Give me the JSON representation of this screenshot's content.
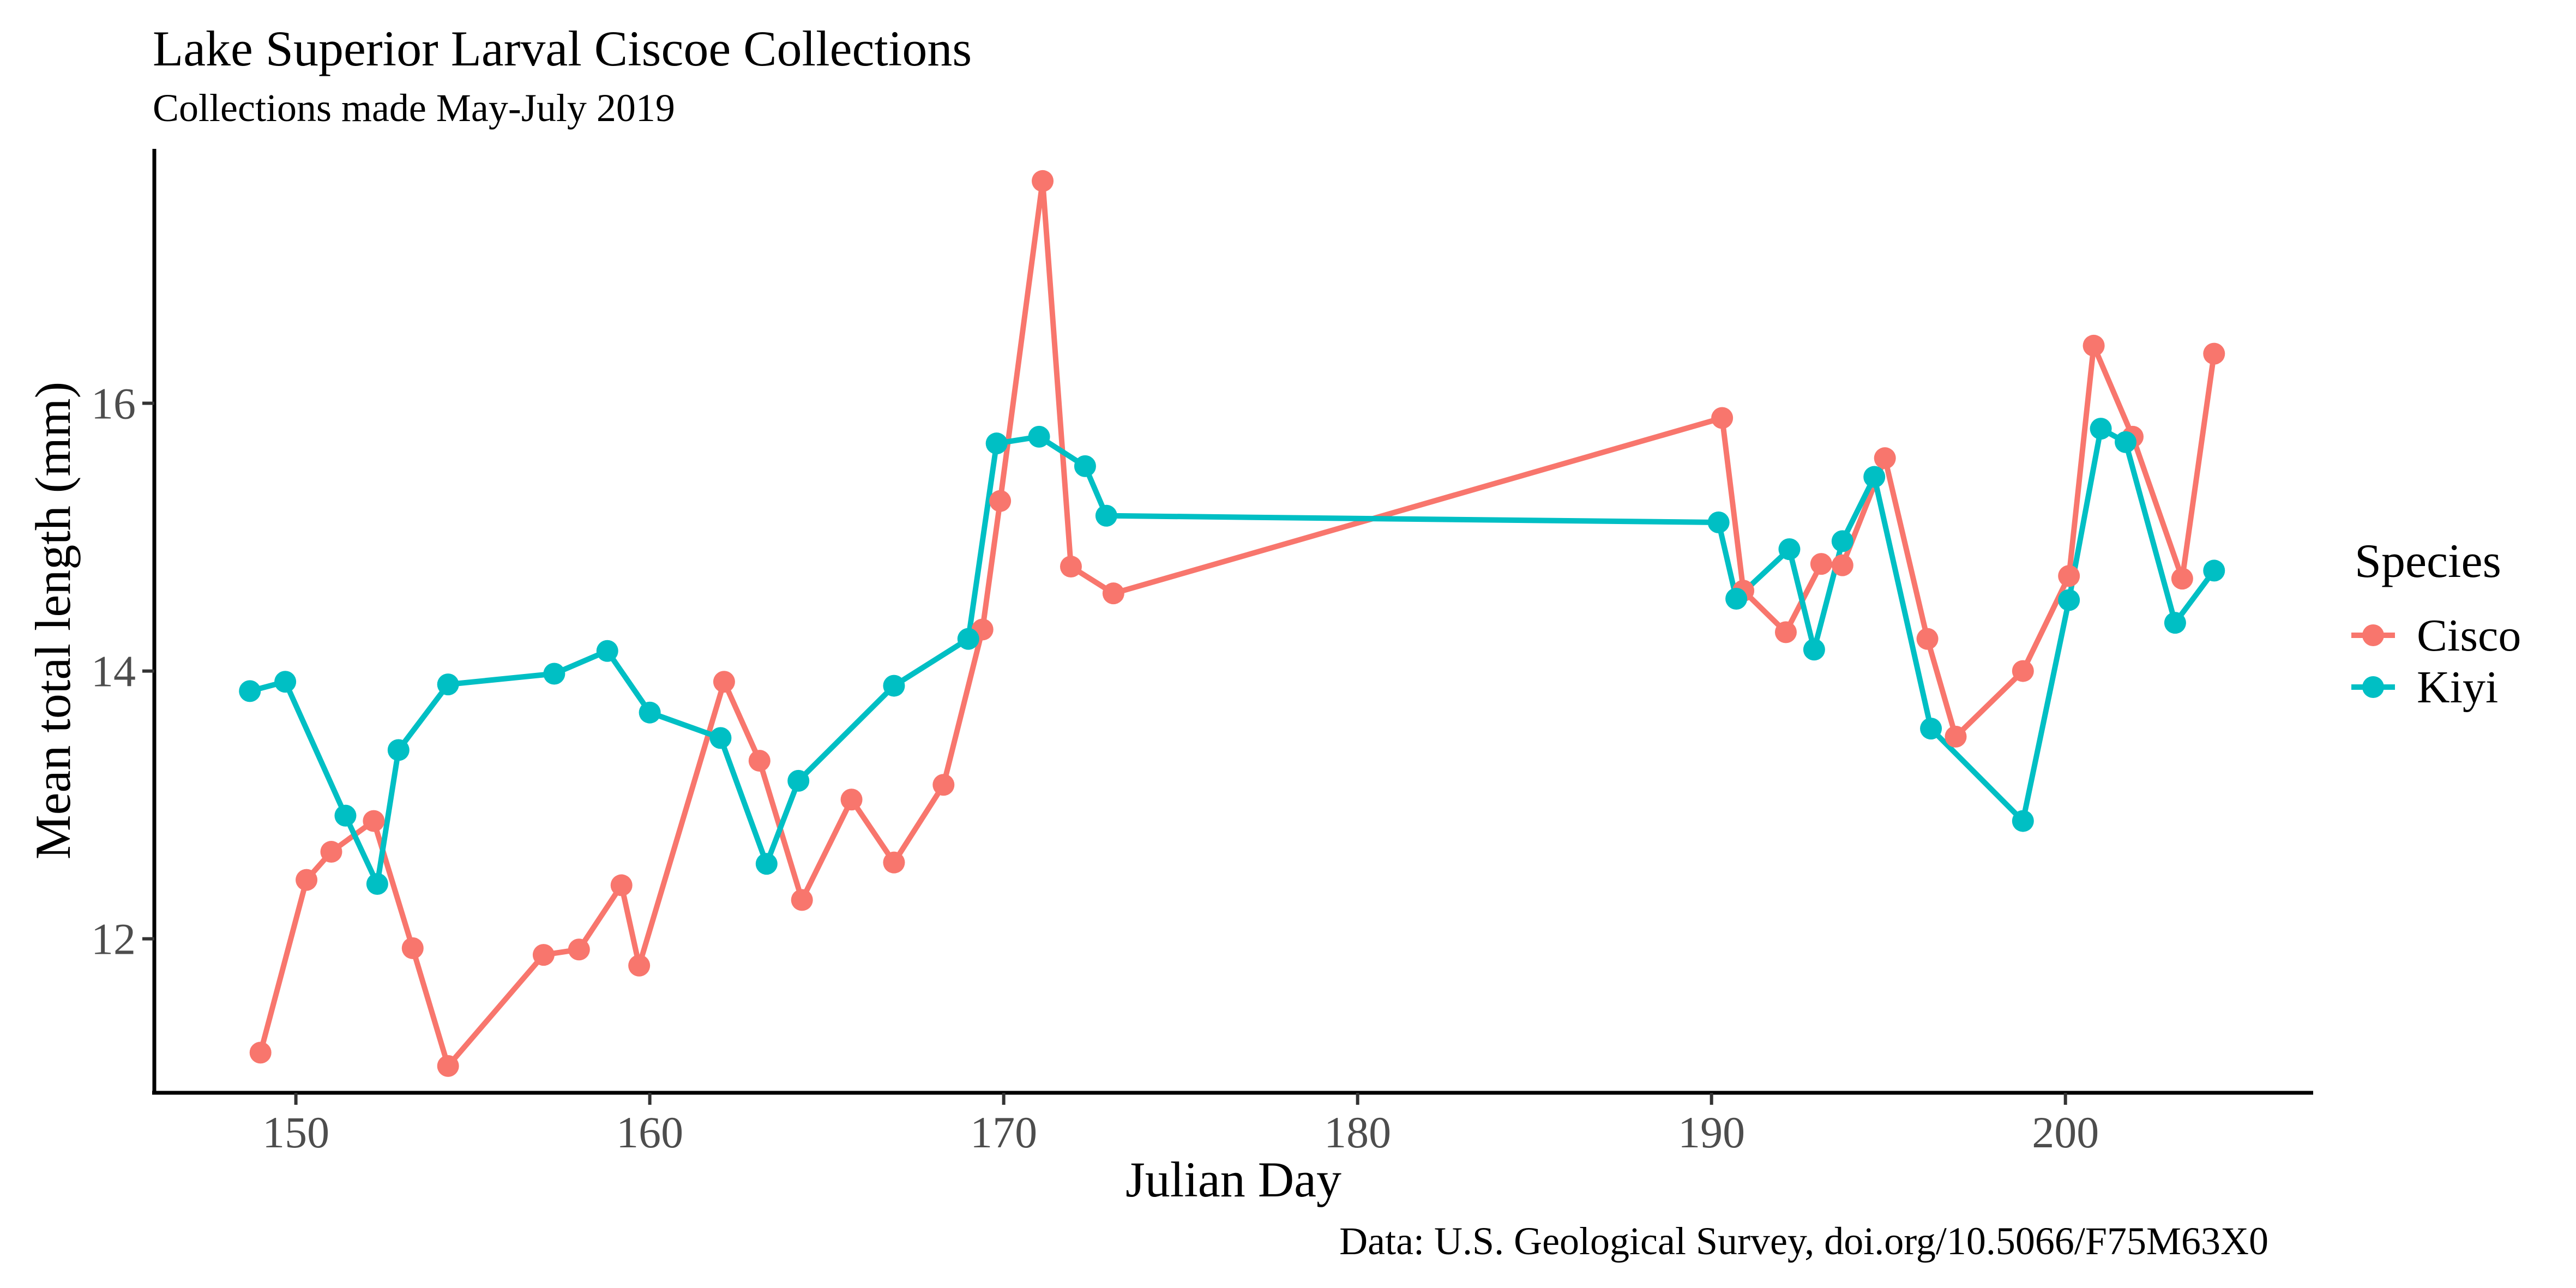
{
  "chart_data": {
    "type": "line",
    "title": "Lake Superior Larval Ciscoe Collections",
    "subtitle": "Collections made May-July 2019",
    "caption": "Data: U.S. Geological Survey, doi.org/10.5066/F75M63X0",
    "xlabel": "Julian Day",
    "ylabel": "Mean total length (mm)",
    "xlim": [
      146,
      207
    ],
    "ylim": [
      10.85,
      17.9
    ],
    "x_ticks": [
      150,
      160,
      170,
      180,
      190,
      200
    ],
    "y_ticks": [
      12,
      14,
      16
    ],
    "grid": false,
    "legend": {
      "title": "Species",
      "position": "right"
    },
    "series": [
      {
        "name": "Cisco",
        "color": "#F8766D",
        "points": [
          [
            149.0,
            11.15
          ],
          [
            150.3,
            12.44
          ],
          [
            151.0,
            12.65
          ],
          [
            152.2,
            12.88
          ],
          [
            153.3,
            11.93
          ],
          [
            154.3,
            11.05
          ],
          [
            157.0,
            11.88
          ],
          [
            158.0,
            11.92
          ],
          [
            159.2,
            12.4
          ],
          [
            159.7,
            11.8
          ],
          [
            162.1,
            13.92
          ],
          [
            163.1,
            13.33
          ],
          [
            164.3,
            12.29
          ],
          [
            165.7,
            13.04
          ],
          [
            166.9,
            12.57
          ],
          [
            168.3,
            13.15
          ],
          [
            169.4,
            14.31
          ],
          [
            169.9,
            15.27
          ],
          [
            171.1,
            17.66
          ],
          [
            171.9,
            14.78
          ],
          [
            173.1,
            14.58
          ],
          [
            190.3,
            15.89
          ],
          [
            190.9,
            14.6
          ],
          [
            192.1,
            14.29
          ],
          [
            193.1,
            14.8
          ],
          [
            193.7,
            14.79
          ],
          [
            194.9,
            15.59
          ],
          [
            196.1,
            14.24
          ],
          [
            196.9,
            13.51
          ],
          [
            198.8,
            14.0
          ],
          [
            200.1,
            14.71
          ],
          [
            200.8,
            16.43
          ],
          [
            201.9,
            15.75
          ],
          [
            203.3,
            14.69
          ],
          [
            204.2,
            16.37
          ]
        ]
      },
      {
        "name": "Kiyi",
        "color": "#00BFC4",
        "points": [
          [
            148.7,
            13.85
          ],
          [
            149.7,
            13.92
          ],
          [
            151.4,
            12.92
          ],
          [
            152.3,
            12.41
          ],
          [
            152.9,
            13.41
          ],
          [
            154.3,
            13.9
          ],
          [
            157.3,
            13.98
          ],
          [
            158.8,
            14.15
          ],
          [
            160.0,
            13.69
          ],
          [
            162.0,
            13.5
          ],
          [
            163.3,
            12.56
          ],
          [
            164.2,
            13.18
          ],
          [
            166.9,
            13.89
          ],
          [
            169.0,
            14.24
          ],
          [
            169.8,
            15.7
          ],
          [
            171.0,
            15.75
          ],
          [
            172.3,
            15.53
          ],
          [
            172.9,
            15.16
          ],
          [
            190.2,
            15.11
          ],
          [
            190.7,
            14.54
          ],
          [
            192.2,
            14.91
          ],
          [
            192.9,
            14.16
          ],
          [
            193.7,
            14.97
          ],
          [
            194.6,
            15.45
          ],
          [
            196.2,
            13.57
          ],
          [
            198.8,
            12.88
          ],
          [
            200.1,
            14.53
          ],
          [
            201.0,
            15.81
          ],
          [
            201.7,
            15.71
          ],
          [
            203.1,
            14.36
          ],
          [
            204.2,
            14.75
          ]
        ]
      }
    ]
  }
}
